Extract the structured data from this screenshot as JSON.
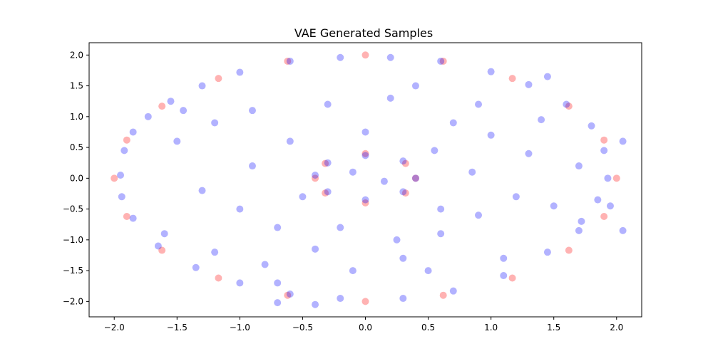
{
  "chart_data": {
    "type": "scatter",
    "title": "VAE Generated Samples",
    "xlabel": "",
    "ylabel": "",
    "xlim": [
      -2.2,
      2.2
    ],
    "ylim": [
      -2.25,
      2.2
    ],
    "x_ticks": [
      -2.0,
      -1.5,
      -1.0,
      -0.5,
      0.0,
      0.5,
      1.0,
      1.5,
      2.0
    ],
    "x_tick_labels": [
      "−2.0",
      "−1.5",
      "−1.0",
      "−0.5",
      "0.0",
      "0.5",
      "1.0",
      "1.5",
      "2.0"
    ],
    "y_ticks": [
      2.0,
      1.5,
      1.0,
      0.5,
      0.0,
      -0.5,
      -1.0,
      -1.5,
      -2.0
    ],
    "y_tick_labels": [
      "2.0",
      "1.5",
      "1.0",
      "0.5",
      "0.0",
      "−0.5",
      "−1.0",
      "−1.5",
      "−2.0"
    ],
    "grid": false,
    "legend": "none",
    "series": [
      {
        "color": "#ff0000",
        "alpha": 0.3,
        "values": [
          [
            -2.0,
            0.0
          ],
          [
            -1.9,
            0.62
          ],
          [
            -1.62,
            1.17
          ],
          [
            -1.17,
            1.62
          ],
          [
            -0.62,
            1.9
          ],
          [
            0.0,
            2.0
          ],
          [
            0.62,
            1.9
          ],
          [
            1.17,
            1.62
          ],
          [
            1.62,
            1.17
          ],
          [
            1.9,
            0.62
          ],
          [
            2.0,
            0.0
          ],
          [
            1.9,
            -0.62
          ],
          [
            1.62,
            -1.17
          ],
          [
            1.17,
            -1.62
          ],
          [
            0.62,
            -1.9
          ],
          [
            0.0,
            -2.0
          ],
          [
            -0.62,
            -1.9
          ],
          [
            -1.17,
            -1.62
          ],
          [
            -1.62,
            -1.17
          ],
          [
            -1.9,
            -0.62
          ],
          [
            -0.4,
            0.0
          ],
          [
            -0.32,
            0.24
          ],
          [
            0.0,
            0.4
          ],
          [
            0.32,
            0.24
          ],
          [
            0.4,
            0.0
          ],
          [
            0.32,
            -0.24
          ],
          [
            0.0,
            -0.4
          ],
          [
            -0.32,
            -0.24
          ]
        ]
      },
      {
        "color": "#0000ff",
        "alpha": 0.3,
        "values": [
          [
            -1.95,
            0.05
          ],
          [
            -1.92,
            0.45
          ],
          [
            -1.85,
            0.75
          ],
          [
            -1.73,
            1.0
          ],
          [
            -1.55,
            1.25
          ],
          [
            -1.3,
            1.5
          ],
          [
            -1.0,
            1.72
          ],
          [
            -0.6,
            1.9
          ],
          [
            -0.2,
            1.96
          ],
          [
            0.2,
            1.96
          ],
          [
            0.6,
            1.9
          ],
          [
            1.0,
            1.73
          ],
          [
            1.3,
            1.52
          ],
          [
            1.6,
            1.2
          ],
          [
            1.8,
            0.85
          ],
          [
            1.9,
            0.45
          ],
          [
            1.93,
            0.0
          ],
          [
            1.85,
            -0.35
          ],
          [
            1.72,
            -0.7
          ],
          [
            1.45,
            -1.2
          ],
          [
            1.1,
            -1.58
          ],
          [
            0.7,
            -1.83
          ],
          [
            0.3,
            -1.95
          ],
          [
            -0.2,
            -1.95
          ],
          [
            -0.6,
            -1.88
          ],
          [
            -1.0,
            -1.7
          ],
          [
            -1.35,
            -1.45
          ],
          [
            -1.65,
            -1.1
          ],
          [
            -1.85,
            -0.65
          ],
          [
            -1.94,
            -0.3
          ],
          [
            -0.4,
            0.05
          ],
          [
            -0.3,
            0.25
          ],
          [
            0.0,
            0.37
          ],
          [
            0.3,
            0.28
          ],
          [
            0.4,
            0.0
          ],
          [
            0.3,
            -0.22
          ],
          [
            0.0,
            -0.35
          ],
          [
            -0.3,
            -0.22
          ],
          [
            -0.1,
            0.1
          ],
          [
            0.15,
            -0.05
          ],
          [
            -1.5,
            0.6
          ],
          [
            -1.2,
            0.9
          ],
          [
            -0.9,
            0.2
          ],
          [
            -0.6,
            0.6
          ],
          [
            -0.3,
            1.2
          ],
          [
            0.2,
            1.3
          ],
          [
            0.4,
            1.5
          ],
          [
            0.7,
            0.9
          ],
          [
            1.0,
            0.7
          ],
          [
            1.3,
            0.4
          ],
          [
            1.45,
            1.65
          ],
          [
            1.2,
            -0.3
          ],
          [
            0.9,
            -0.6
          ],
          [
            0.6,
            -0.9
          ],
          [
            0.3,
            -1.3
          ],
          [
            -0.1,
            -1.5
          ],
          [
            -0.4,
            -1.15
          ],
          [
            -0.7,
            -0.8
          ],
          [
            -1.0,
            -0.5
          ],
          [
            -1.3,
            -0.2
          ],
          [
            -1.6,
            -0.9
          ],
          [
            -1.2,
            -1.2
          ],
          [
            -0.8,
            -1.4
          ],
          [
            0.25,
            -1.0
          ],
          [
            0.6,
            -0.5
          ],
          [
            0.85,
            0.1
          ],
          [
            1.5,
            -0.45
          ],
          [
            1.7,
            0.2
          ],
          [
            -0.5,
            -0.3
          ],
          [
            0.55,
            0.45
          ],
          [
            -0.9,
            1.1
          ],
          [
            0.9,
            1.2
          ],
          [
            -0.7,
            -1.7
          ],
          [
            0.5,
            -1.5
          ],
          [
            1.1,
            -1.3
          ],
          [
            -1.45,
            1.1
          ],
          [
            1.4,
            0.95
          ],
          [
            -0.2,
            -0.8
          ],
          [
            0.0,
            0.75
          ],
          [
            2.05,
            0.6
          ],
          [
            2.05,
            -0.85
          ],
          [
            1.95,
            -0.45
          ],
          [
            -0.4,
            -2.05
          ],
          [
            -0.7,
            -2.02
          ],
          [
            1.7,
            -0.85
          ]
        ]
      }
    ]
  }
}
